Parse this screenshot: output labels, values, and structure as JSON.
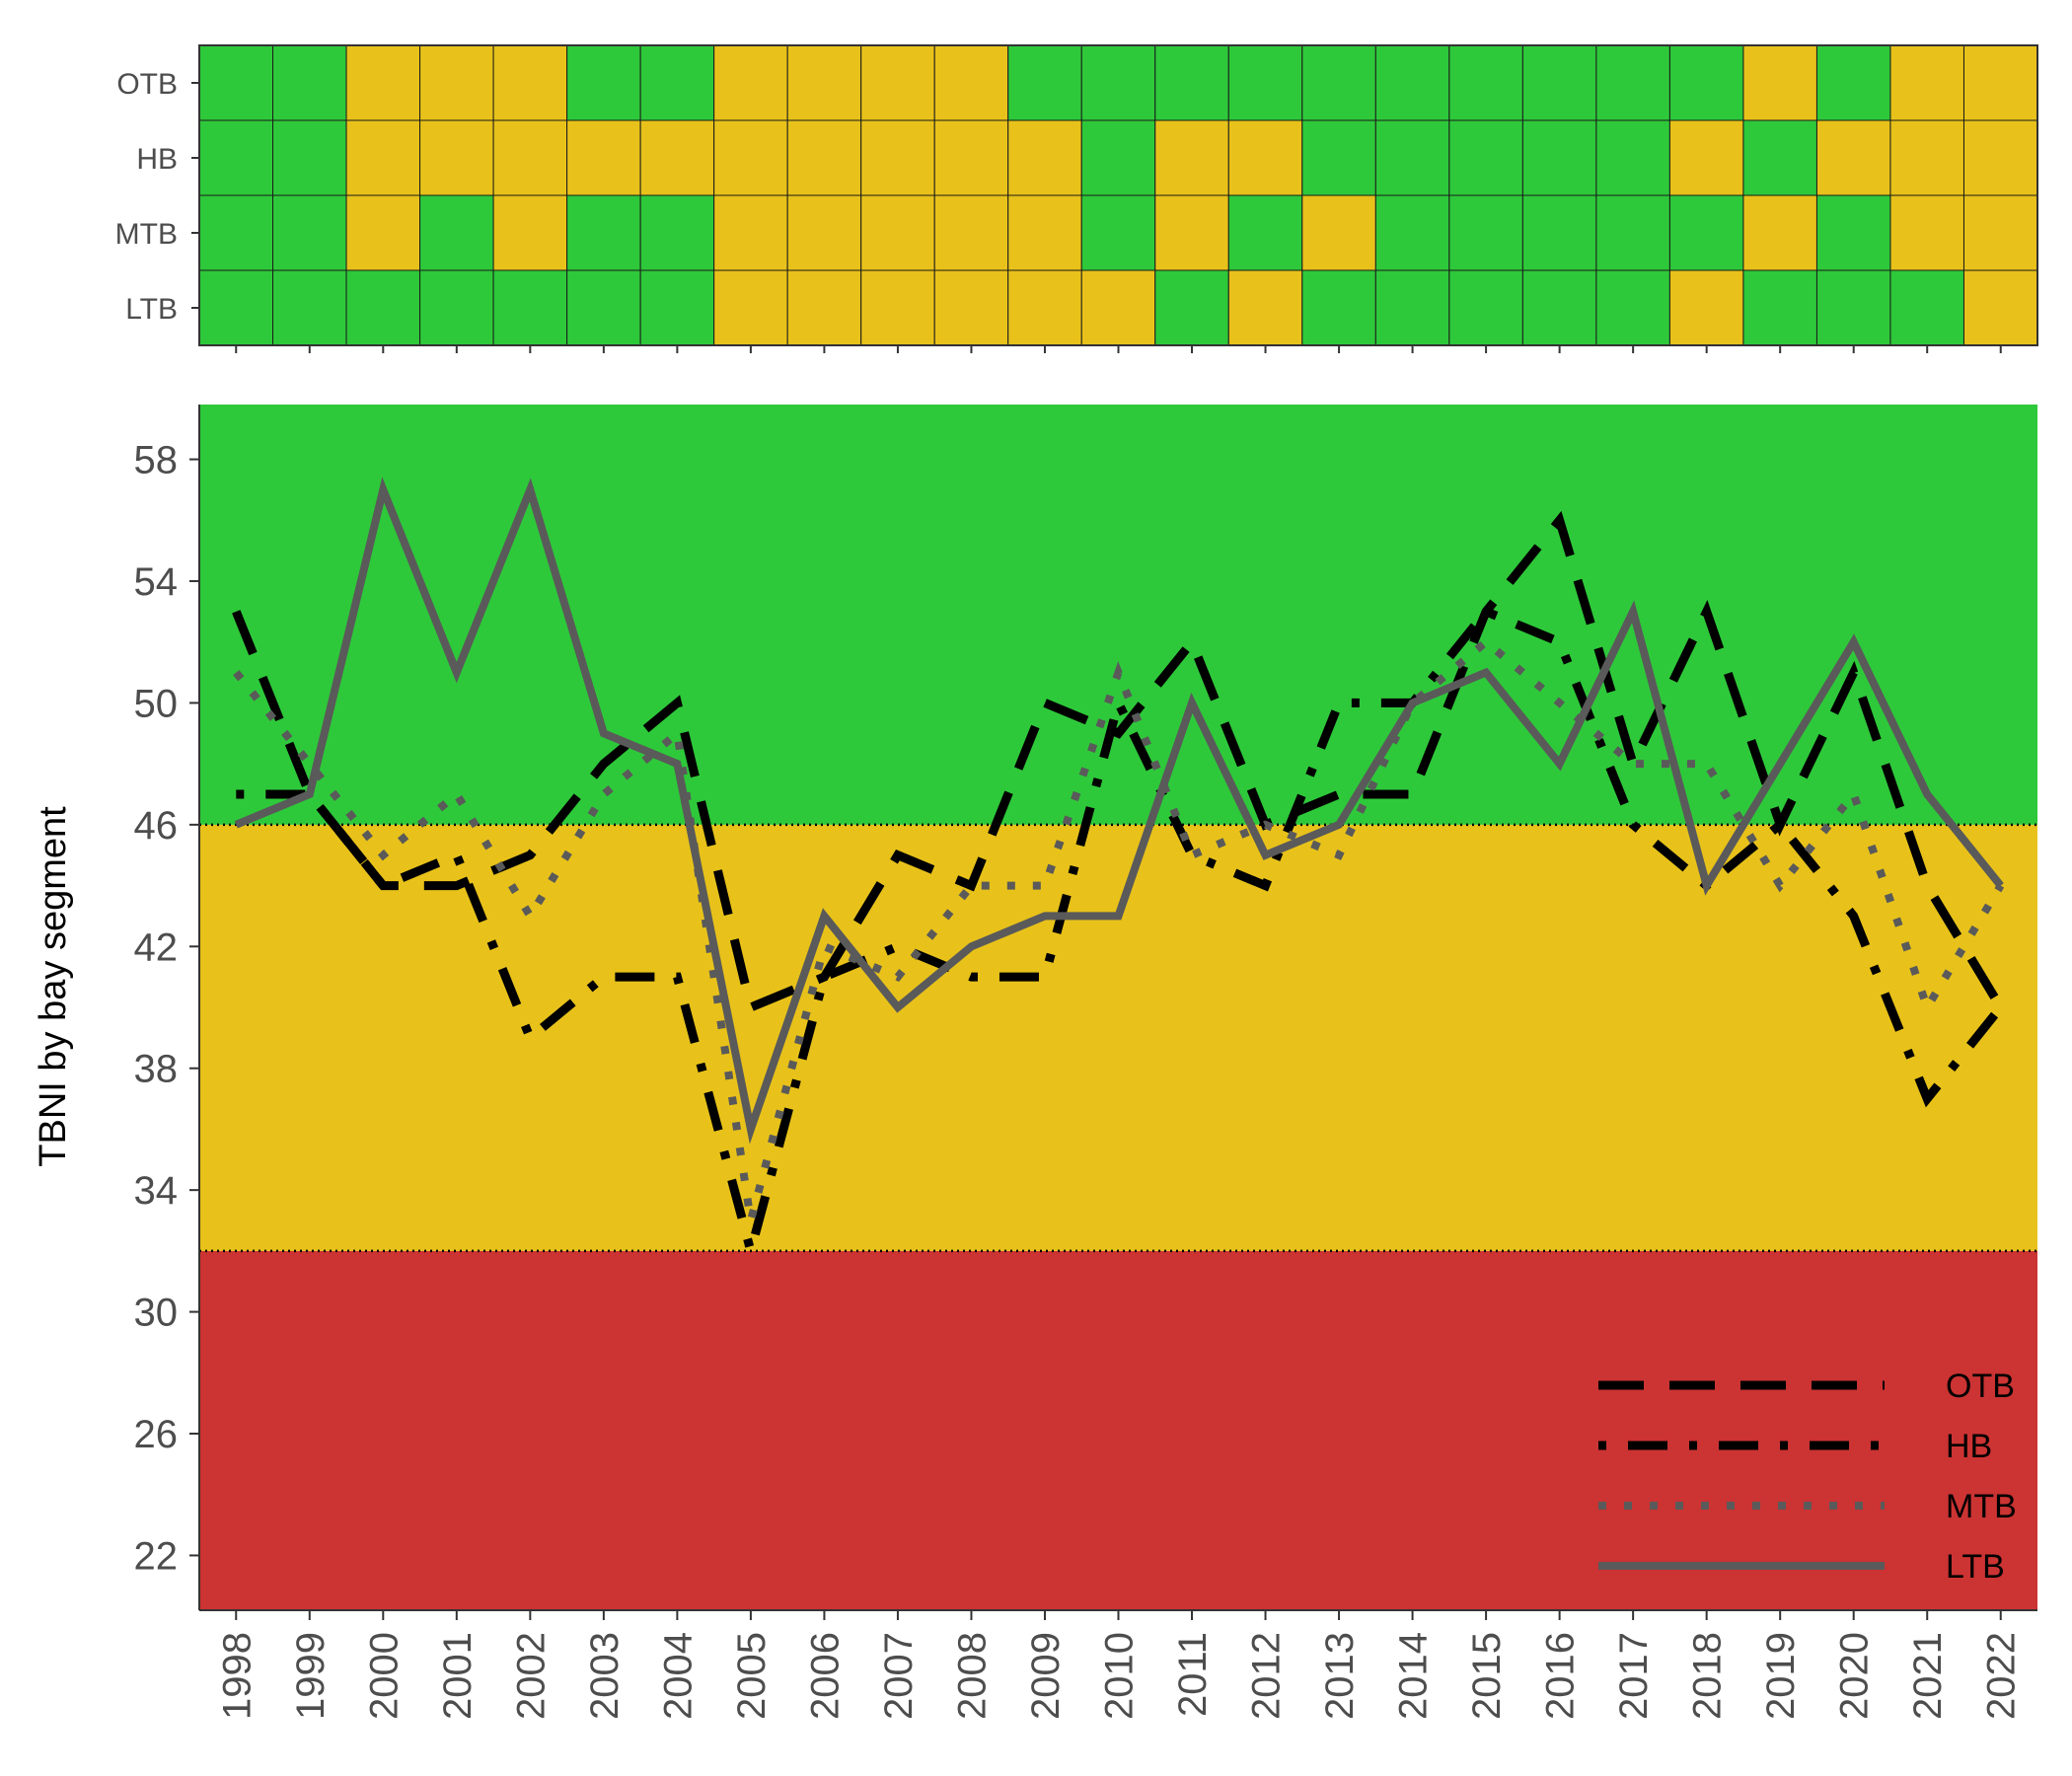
{
  "colors": {
    "green": "#2EC93A",
    "yellow": "#E8C21A",
    "red": "#CC3333",
    "tick_text": "#4D4D4D"
  },
  "chart_data": [
    {
      "type": "heatmap",
      "title": "",
      "x": [
        "1998",
        "1999",
        "2000",
        "2001",
        "2002",
        "2003",
        "2004",
        "2005",
        "2006",
        "2007",
        "2008",
        "2009",
        "2010",
        "2011",
        "2012",
        "2013",
        "2014",
        "2015",
        "2016",
        "2017",
        "2018",
        "2019",
        "2020",
        "2021",
        "2022"
      ],
      "rows": [
        "OTB",
        "HB",
        "MTB",
        "LTB"
      ],
      "categories": {
        "G": "green",
        "Y": "yellow"
      },
      "cells": {
        "OTB": [
          "G",
          "G",
          "Y",
          "Y",
          "Y",
          "G",
          "G",
          "Y",
          "Y",
          "Y",
          "Y",
          "G",
          "G",
          "G",
          "G",
          "G",
          "G",
          "G",
          "G",
          "G",
          "G",
          "Y",
          "G",
          "Y",
          "Y"
        ],
        "HB": [
          "G",
          "G",
          "Y",
          "Y",
          "Y",
          "Y",
          "Y",
          "Y",
          "Y",
          "Y",
          "Y",
          "Y",
          "G",
          "Y",
          "Y",
          "G",
          "G",
          "G",
          "G",
          "G",
          "Y",
          "G",
          "Y",
          "Y",
          "Y"
        ],
        "MTB": [
          "G",
          "G",
          "Y",
          "G",
          "Y",
          "G",
          "G",
          "Y",
          "Y",
          "Y",
          "Y",
          "Y",
          "G",
          "Y",
          "G",
          "Y",
          "G",
          "G",
          "G",
          "G",
          "G",
          "Y",
          "G",
          "Y",
          "Y"
        ],
        "LTB": [
          "G",
          "G",
          "G",
          "G",
          "G",
          "G",
          "G",
          "Y",
          "Y",
          "Y",
          "Y",
          "Y",
          "Y",
          "G",
          "Y",
          "G",
          "G",
          "G",
          "G",
          "G",
          "Y",
          "G",
          "G",
          "G",
          "Y"
        ]
      }
    },
    {
      "type": "line",
      "title": "",
      "xlabel": "",
      "ylabel": "TBNI by bay segment",
      "x": [
        "1998",
        "1999",
        "2000",
        "2001",
        "2002",
        "2003",
        "2004",
        "2005",
        "2006",
        "2007",
        "2008",
        "2009",
        "2010",
        "2011",
        "2012",
        "2013",
        "2014",
        "2015",
        "2016",
        "2017",
        "2018",
        "2019",
        "2020",
        "2021",
        "2022"
      ],
      "ylim": [
        20.2,
        59.8
      ],
      "yticks": [
        22,
        26,
        30,
        34,
        38,
        42,
        46,
        50,
        54,
        58
      ],
      "bands": [
        {
          "from": 20.2,
          "to": 32,
          "color": "red"
        },
        {
          "from": 32,
          "to": 46,
          "color": "yellow"
        },
        {
          "from": 46,
          "to": 59.8,
          "color": "green"
        }
      ],
      "thresholds": [
        32,
        46
      ],
      "legend_position": "bottom-right",
      "series": [
        {
          "name": "OTB",
          "values": [
            53,
            47,
            44,
            44,
            45,
            48,
            50,
            40,
            41,
            45,
            44,
            50,
            49,
            52,
            46,
            47,
            47,
            53,
            56,
            48,
            53,
            46,
            51,
            44,
            40
          ]
        },
        {
          "name": "HB",
          "values": [
            47,
            47,
            44,
            45,
            39,
            41,
            41,
            32,
            41,
            42,
            41,
            41,
            50,
            45,
            44,
            50,
            50,
            53,
            52,
            46,
            44,
            46,
            43,
            37,
            40
          ]
        },
        {
          "name": "MTB",
          "values": [
            51,
            48,
            45,
            47,
            43,
            47,
            49,
            33,
            42,
            41,
            44,
            44,
            51,
            45,
            46,
            45,
            50,
            52,
            50,
            48,
            48,
            44,
            47,
            40,
            44
          ]
        },
        {
          "name": "LTB",
          "values": [
            46,
            47,
            57,
            51,
            57,
            49,
            48,
            36,
            43,
            40,
            42,
            43,
            43,
            50,
            45,
            46,
            50,
            51,
            48,
            53,
            44,
            48,
            52,
            47,
            44
          ]
        }
      ]
    }
  ]
}
